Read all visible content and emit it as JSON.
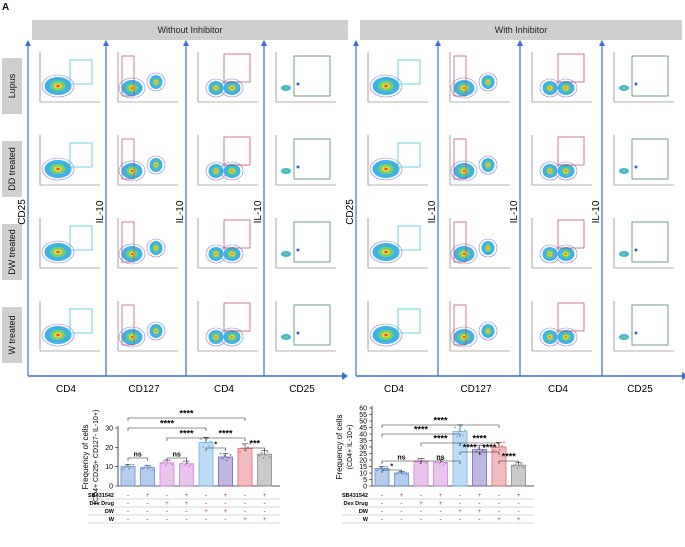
{
  "panel_label": "A",
  "headers": {
    "left": "Without Inhibitor",
    "right": "With Inhibitor"
  },
  "row_labels": [
    "Lupus",
    "DD treated",
    "DW treated",
    "W treated"
  ],
  "group_axes": {
    "x_labels": [
      "CD4",
      "CD127",
      "CD4",
      "CD25"
    ],
    "y_labels": [
      "CD25",
      "IL-10",
      "IL-10",
      "IL-10"
    ]
  },
  "chart_data": [
    {
      "type": "bar",
      "ylabel": "Frequency of cells",
      "ylabel2": "(CD4+ CD25+ CD127- IL-10+)",
      "ylim": [
        0,
        30
      ],
      "yticks": [
        0,
        10,
        20,
        30
      ],
      "values": [
        10,
        9.5,
        12,
        11.5,
        22.5,
        15,
        19.5,
        16.5
      ],
      "colors": [
        "#5b8fd6",
        "#5b8fd6",
        "#cf7fd6",
        "#cf7fd6",
        "#6ab4e8",
        "#7060b8",
        "#e06a72",
        "#8a8a8a"
      ],
      "sig": [
        "****",
        "****",
        "****",
        "****",
        "*",
        "ns",
        "ns",
        "***"
      ],
      "table_rows": [
        "SB431542",
        "Dex Drug",
        "DW",
        "W"
      ],
      "table_values": [
        [
          "-",
          "+",
          "-",
          "+",
          "-",
          "+",
          "-",
          "+"
        ],
        [
          "-",
          "-",
          "+",
          "+",
          "-",
          "-",
          "-",
          "-"
        ],
        [
          "-",
          "-",
          "-",
          "-",
          "+",
          "+",
          "-",
          "-"
        ],
        [
          "-",
          "-",
          "-",
          "-",
          "-",
          "-",
          "+",
          "+"
        ]
      ]
    },
    {
      "type": "bar",
      "ylabel": "Frequency of cells",
      "ylabel2": "(CD4+ IL-10+)",
      "ylim": [
        0,
        60
      ],
      "yticks": [
        0,
        5,
        10,
        15,
        20,
        25,
        30,
        35,
        40,
        45,
        50,
        55,
        60
      ],
      "values": [
        13.5,
        10,
        19,
        18,
        42,
        28,
        30,
        16
      ],
      "colors": [
        "#5b8fd6",
        "#5b8fd6",
        "#cf7fd6",
        "#cf7fd6",
        "#6ab4e8",
        "#7060b8",
        "#e06a72",
        "#8a8a8a"
      ],
      "sig": [
        "****",
        "****",
        "****",
        "****",
        "****",
        "****",
        "ns",
        "ns",
        "*",
        "****"
      ],
      "table_rows": [
        "SB431542",
        "Dex Drug",
        "DW",
        "W"
      ],
      "table_values": [
        [
          "-",
          "+",
          "-",
          "+",
          "-",
          "+",
          "-",
          "+"
        ],
        [
          "-",
          "-",
          "+",
          "+",
          "-",
          "-",
          "-",
          "-"
        ],
        [
          "-",
          "-",
          "-",
          "-",
          "+",
          "+",
          "-",
          "-"
        ],
        [
          "-",
          "-",
          "-",
          "-",
          "-",
          "-",
          "+",
          "+"
        ]
      ]
    }
  ]
}
